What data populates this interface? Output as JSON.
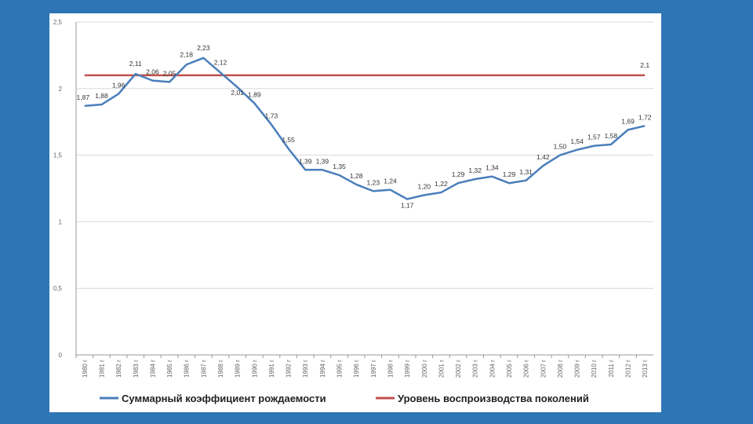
{
  "chart_data": {
    "type": "line",
    "title": "",
    "xlabel": "",
    "ylabel": "",
    "ylim": [
      0,
      2.5
    ],
    "yticks": [
      "0",
      "0,5",
      "1",
      "1,5",
      "2",
      "2,5"
    ],
    "yticks_values": [
      0,
      0.5,
      1,
      1.5,
      2,
      2.5
    ],
    "grid": true,
    "legend_position": "bottom",
    "categories": [
      "1980 г",
      "1981 г",
      "1982 г",
      "1983 г",
      "1984 г",
      "1985 г",
      "1986 г",
      "1987 г",
      "1988 г",
      "1989 г",
      "1990 г",
      "1991 г",
      "1992 г",
      "1993 г",
      "1994 г",
      "1995 г",
      "1996 г",
      "1997 г",
      "1998 г",
      "1999 г",
      "2000 г",
      "2001 г",
      "2002 г",
      "2003 г",
      "2004 г",
      "2005 г",
      "2006 г",
      "2007 г",
      "2008 г",
      "2009 г",
      "2010 г",
      "2011 г",
      "2012 г",
      "2013 г"
    ],
    "series": [
      {
        "name": "Суммарный коэффициент рождаемости",
        "color": "#4a7ebb",
        "values": [
          1.87,
          1.88,
          1.96,
          2.11,
          2.06,
          2.05,
          2.18,
          2.23,
          2.12,
          2.01,
          1.89,
          1.73,
          1.55,
          1.39,
          1.39,
          1.35,
          1.28,
          1.23,
          1.24,
          1.17,
          1.2,
          1.22,
          1.29,
          1.32,
          1.34,
          1.29,
          1.31,
          1.42,
          1.5,
          1.54,
          1.57,
          1.58,
          1.69,
          1.72
        ],
        "labels": [
          "1,87",
          "1,88",
          "1,96",
          "2,11",
          "2,06",
          "2,05",
          "2,18",
          "2,23",
          "2,12",
          "2,01",
          "1,89",
          "1,73",
          "1,55",
          "1,39",
          "1,39",
          "1,35",
          "1,28",
          "1,23",
          "1,24",
          "1,17",
          "1,20",
          "1,22",
          "1,29",
          "1,32",
          "1,34",
          "1,29",
          "1,31",
          "1,42",
          "1,50",
          "1,54",
          "1,57",
          "1,58",
          "1,69",
          "1,72"
        ]
      },
      {
        "name": "Уровень воспроизводства поколений",
        "color": "#c0504d",
        "values": [
          2.1,
          2.1,
          2.1,
          2.1,
          2.1,
          2.1,
          2.1,
          2.1,
          2.1,
          2.1,
          2.1,
          2.1,
          2.1,
          2.1,
          2.1,
          2.1,
          2.1,
          2.1,
          2.1,
          2.1,
          2.1,
          2.1,
          2.1,
          2.1,
          2.1,
          2.1,
          2.1,
          2.1,
          2.1,
          2.1,
          2.1,
          2.1,
          2.1,
          2.1
        ],
        "label_text": "2,1"
      }
    ],
    "highlight_colors": {
      "peak": "#2e75b6",
      "minimum": "#c0504d"
    }
  }
}
